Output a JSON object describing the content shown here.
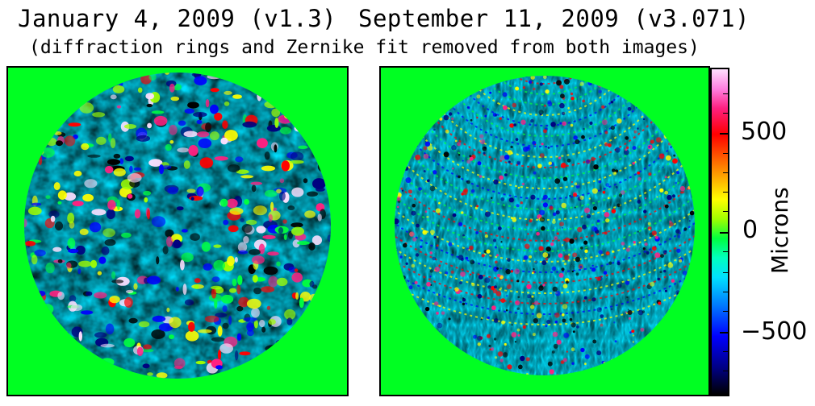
{
  "header": {
    "title_left": "January 4, 2009 (v1.3)",
    "title_right": "September 11, 2009 (v3.071)",
    "subtitle": "(diffraction rings and Zernike fit removed from both images)"
  },
  "colorbar": {
    "units": "Microns",
    "ticks": [
      "500",
      "0",
      "−500"
    ]
  },
  "colors": {
    "background_green": "#00ff22",
    "blue": "#0000ff",
    "cyan": "#00e0ff",
    "yellow": "#ffff00",
    "red": "#ff0000",
    "magenta": "#ff2080",
    "pink": "#ffe0ff",
    "black": "#000000"
  }
}
